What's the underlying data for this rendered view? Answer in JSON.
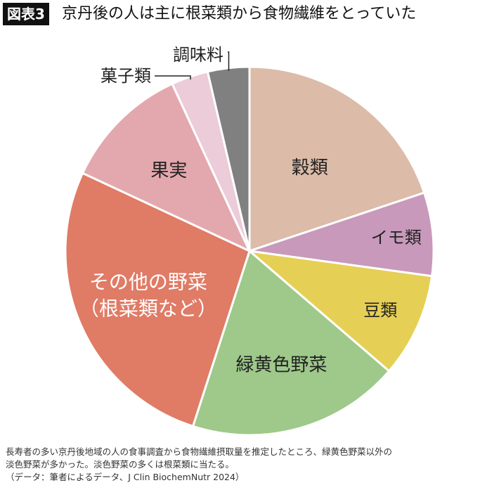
{
  "header": {
    "badge": "図表3",
    "title": "京丹後の人は主に根菜類から食物繊維をとっていた"
  },
  "chart_data": {
    "type": "pie",
    "title": "京丹後の人は主に根菜類から食物繊維をとっていた",
    "start": "12 o'clock",
    "direction": "clockwise",
    "slices": [
      {
        "label": "穀類",
        "value": 19.6,
        "color": "#dcbba8"
      },
      {
        "label": "イモ類",
        "value": 7.2,
        "color": "#c899bb"
      },
      {
        "label": "豆類",
        "value": 9.0,
        "color": "#e6cf55"
      },
      {
        "label": "緑黄色野菜",
        "value": 18.4,
        "color": "#9ec98a"
      },
      {
        "label": "その他の野菜（根菜類など）",
        "label_lines": [
          "その他の野菜",
          "（根菜類など）"
        ],
        "value": 26.6,
        "color": "#e07b66"
      },
      {
        "label": "果実",
        "value": 11.0,
        "color": "#e3a8ae"
      },
      {
        "label": "菓子類",
        "value": 3.2,
        "color": "#ecccd9"
      },
      {
        "label": "調味料",
        "value": 3.6,
        "color": "#808080"
      }
    ],
    "label_colors": {
      "inside_dark": "#222222",
      "inside_light": "#ffffff"
    }
  },
  "notes": {
    "line1": "長寿者の多い京丹後地域の人の食事調査から食物繊維摂取量を推定したところ、緑黄色野菜以外の",
    "line2": "淡色野菜が多かった。淡色野菜の多くは根菜類に当たる。",
    "line3": "（データ：筆者によるデータ、J Clin BiochemNutr 2024）"
  }
}
